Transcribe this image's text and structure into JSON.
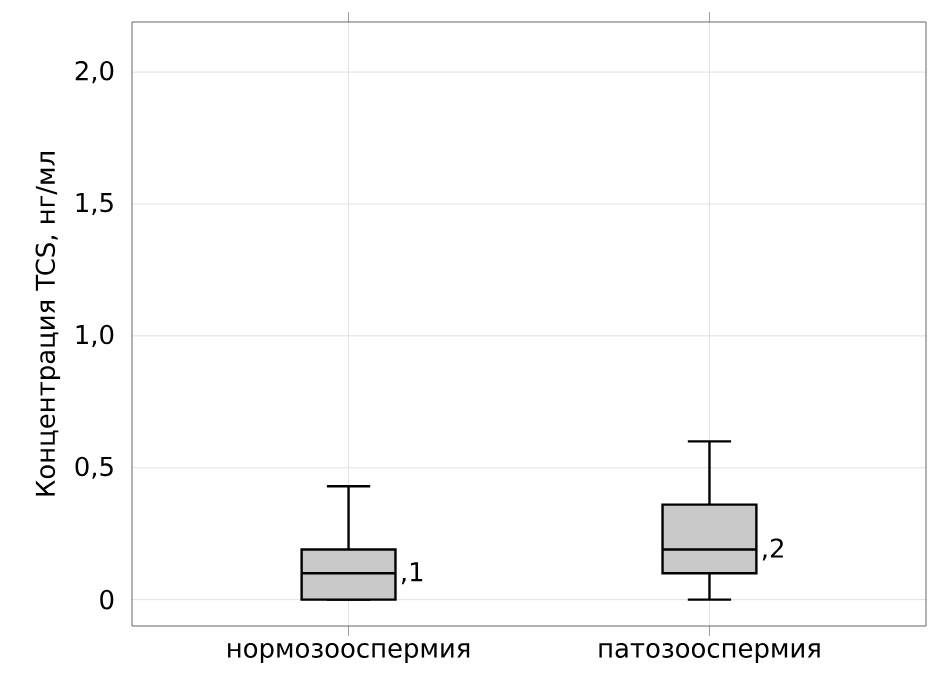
{
  "chart_data": {
    "type": "box",
    "ylabel": "Концентрация TCS, нг/мл",
    "categories": [
      "нормозооспермия",
      "патозооспермия"
    ],
    "series": [
      {
        "color": "#c8c8c8",
        "boxes": [
          {
            "low": 0,
            "q1": 0,
            "median": 0.1,
            "q3": 0.19,
            "high": 0.43
          },
          {
            "low": 0,
            "q1": 0.1,
            "median": 0.19,
            "q3": 0.36,
            "high": 0.6
          }
        ]
      }
    ],
    "ylim": [
      -0.1,
      2.19
    ],
    "yticks": [
      0,
      {
        "value": 0.5,
        "label": "0,5"
      },
      {
        "value": 1.0,
        "label": "1,0"
      },
      {
        "value": 1.5,
        "label": "1,5"
      },
      {
        "value": 2.0,
        "label": "2,0"
      }
    ],
    "grid": true,
    "annotations": [
      ",1",
      ",2"
    ]
  }
}
